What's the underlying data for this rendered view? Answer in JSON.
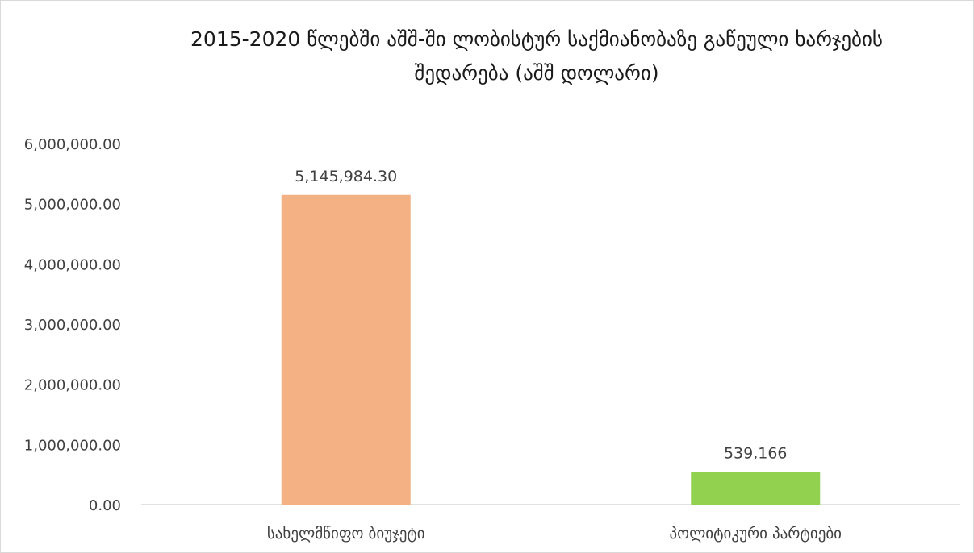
{
  "chart_data": {
    "type": "bar",
    "title_lines": [
      "2015-2020 წლებში აშშ-ში ლობისტურ საქმიანობაზე გაწეული ხარჯების",
      "შედარება (აშშ დოლარი)"
    ],
    "categories": [
      "სახელმწიფო ბიუჯეტი",
      "პოლიტიკური პარტიები"
    ],
    "values": [
      5145984.3,
      539166
    ],
    "value_labels": [
      "5,145,984.30",
      "539,166"
    ],
    "colors": [
      "#f4b183",
      "#92d050"
    ],
    "ylim": [
      0,
      6000000
    ],
    "yticks": [
      0,
      1000000,
      2000000,
      3000000,
      4000000,
      5000000,
      6000000
    ],
    "ytick_labels": [
      "0.00",
      "1,000,000.00",
      "2,000,000.00",
      "3,000,000.00",
      "4,000,000.00",
      "5,000,000.00",
      "6,000,000.00"
    ],
    "grid": false,
    "legend": "none",
    "xlabel": "",
    "ylabel": ""
  }
}
